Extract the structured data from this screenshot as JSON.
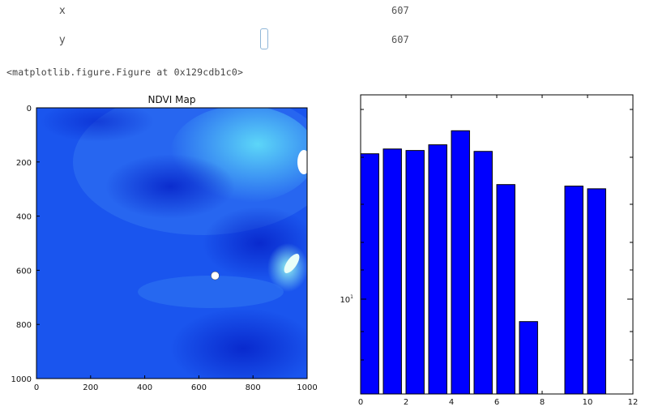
{
  "widgets": {
    "x": {
      "label": "x",
      "value": "607"
    },
    "y": {
      "label": "y",
      "value": "607"
    }
  },
  "output_repr": "<matplotlib.figure.Figure at 0x129cdb1c0>",
  "map": {
    "title": "NDVI Map",
    "x_ticks": [
      "0",
      "200",
      "400",
      "600",
      "800",
      "1000"
    ],
    "y_ticks": [
      "0",
      "200",
      "400",
      "600",
      "800",
      "1000"
    ],
    "marker": {
      "x": 660,
      "y": 620
    },
    "colors": {
      "base": "#1a55ee",
      "dark": "#0a2fd6",
      "light": "#38b8f5"
    }
  },
  "chart_data": {
    "type": "bar",
    "x_ticks": [
      "0",
      "2",
      "4",
      "6",
      "8",
      "10",
      "12"
    ],
    "y_tick_label": "10",
    "xlim": [
      0,
      12
    ],
    "bars": [
      {
        "x": 0,
        "h": 0.803
      },
      {
        "x": 1,
        "h": 0.819
      },
      {
        "x": 2,
        "h": 0.814
      },
      {
        "x": 3,
        "h": 0.833
      },
      {
        "x": 4,
        "h": 0.88
      },
      {
        "x": 5,
        "h": 0.811
      },
      {
        "x": 6,
        "h": 0.7
      },
      {
        "x": 7,
        "h": 0.242
      },
      {
        "x": 9,
        "h": 0.695
      },
      {
        "x": 10,
        "h": 0.686
      }
    ],
    "bar_width": 0.8,
    "color": "#0000ff"
  }
}
